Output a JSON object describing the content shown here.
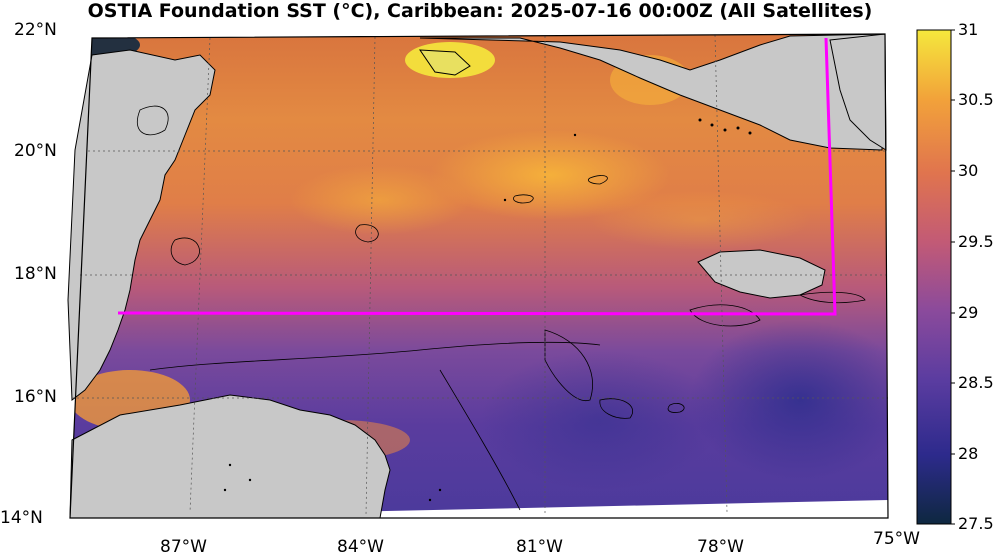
{
  "title": "OSTIA Foundation SST (°C), Caribbean: 2025-07-16 00:00Z (All Satellites)",
  "lat_labels": [
    "22°N",
    "20°N",
    "18°N",
    "16°N",
    "14°N"
  ],
  "lon_labels": [
    "87°W",
    "84°W",
    "81°W",
    "78°W",
    "75°W"
  ],
  "colorbar": {
    "labels": [
      "31",
      "30.5",
      "30",
      "29.5",
      "29",
      "28.5",
      "28",
      "27.5"
    ],
    "min": 27.5,
    "max": 31,
    "colors": [
      "#0e2840",
      "#2d2a8c",
      "#5a3ca0",
      "#8a4a9c",
      "#c25a76",
      "#e0744e",
      "#f2a23a",
      "#f5e83c"
    ]
  },
  "colors": {
    "land": "#c8c8c8",
    "coast": "#000000",
    "box": "#ff00ff",
    "warm": "#e8823e",
    "cool": "#4a3a9c"
  }
}
